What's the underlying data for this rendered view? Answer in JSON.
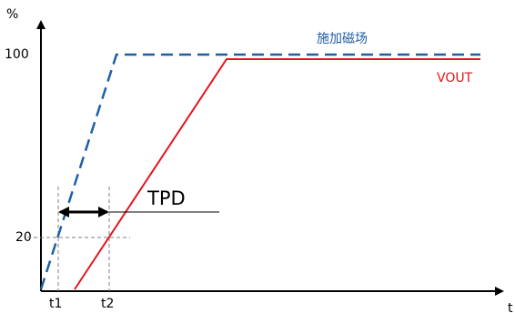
{
  "axes": {
    "y_unit": "%",
    "x_unit": "t",
    "y_ticks": [
      "100",
      "20"
    ],
    "x_ticks": [
      "t1",
      "t2"
    ]
  },
  "series": {
    "magnetic_field": {
      "label": "施加磁场",
      "color": "#1e5fa8",
      "style": "dashed"
    },
    "vout": {
      "label": "VOUT",
      "color": "#e4151b",
      "style": "solid"
    }
  },
  "annotation": {
    "label": "TPD"
  },
  "colors": {
    "axis": "#000000",
    "guide": "#7f7f7f"
  }
}
